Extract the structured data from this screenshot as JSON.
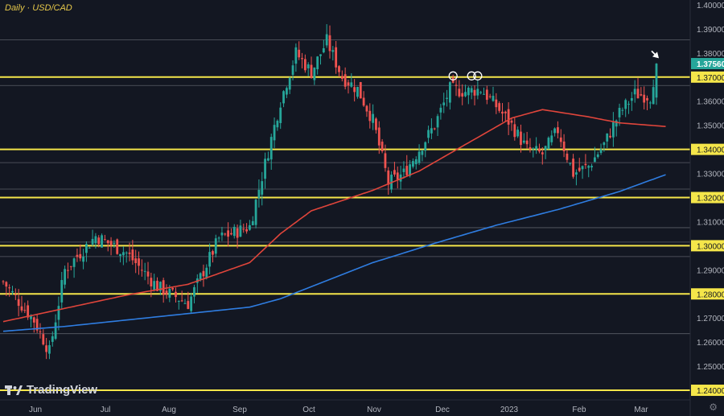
{
  "header": {
    "title": "Daily · USD/CAD"
  },
  "branding": {
    "logo_text": "TradingView"
  },
  "footer": {
    "settings_icon": "gear-icon"
  },
  "colors": {
    "background": "#131722",
    "bull": "#26a69a",
    "bear": "#ef5350",
    "support_resistance": "#f5e64a",
    "ma_fast": "#e0453b",
    "ma_slow": "#2f7de1",
    "axis_text": "#b2b5be",
    "price_label_bg": "#26a69a"
  },
  "chart_data": {
    "type": "candlestick",
    "title": "Daily · USD/CAD",
    "y_axis": {
      "min": 1.236,
      "max": 1.402,
      "ticks": [
        "1.40000",
        "1.39000",
        "1.38000",
        "1.37000",
        "1.36000",
        "1.35000",
        "1.34000",
        "1.33000",
        "1.32000",
        "1.31000",
        "1.30000",
        "1.29000",
        "1.28000",
        "1.27000",
        "1.26000",
        "1.25000",
        "1.24000"
      ]
    },
    "x_axis": {
      "ticks": [
        "Jun",
        "Jul",
        "Aug",
        "Sep",
        "Oct",
        "Nov",
        "Dec",
        "2023",
        "Feb",
        "Mar"
      ]
    },
    "current_price": "1.37560",
    "horizontal_levels": [
      1.37,
      1.34,
      1.32,
      1.3,
      1.28,
      1.24
    ],
    "faint_levels": [
      1.3855,
      1.3665,
      1.3345,
      1.3235,
      1.3075,
      1.3015,
      1.2955,
      1.2635
    ],
    "markers": [
      {
        "type": "circle",
        "date_index": 146,
        "price": 1.3705
      },
      {
        "type": "circle",
        "date_index": 152,
        "price": 1.3705
      },
      {
        "type": "circle",
        "date_index": 154,
        "price": 1.3705
      },
      {
        "type": "arrow",
        "date_index": 212,
        "price": 1.3785
      }
    ],
    "ma_slow": [
      [
        0,
        1.2645
      ],
      [
        20,
        1.2665
      ],
      [
        50,
        1.2705
      ],
      [
        80,
        1.2745
      ],
      [
        90,
        1.278
      ],
      [
        100,
        1.283
      ],
      [
        120,
        1.293
      ],
      [
        140,
        1.301
      ],
      [
        160,
        1.3085
      ],
      [
        180,
        1.315
      ],
      [
        200,
        1.3225
      ],
      [
        215,
        1.3295
      ]
    ],
    "ma_fast": [
      [
        0,
        1.2685
      ],
      [
        20,
        1.274
      ],
      [
        40,
        1.2795
      ],
      [
        60,
        1.284
      ],
      [
        80,
        1.293
      ],
      [
        90,
        1.305
      ],
      [
        100,
        1.3145
      ],
      [
        120,
        1.323
      ],
      [
        135,
        1.331
      ],
      [
        150,
        1.342
      ],
      [
        165,
        1.353
      ],
      [
        175,
        1.3565
      ],
      [
        190,
        1.3535
      ],
      [
        200,
        1.351
      ],
      [
        215,
        1.3495
      ]
    ],
    "close_path": [
      [
        0,
        1.285
      ],
      [
        10,
        1.269
      ],
      [
        15,
        1.256
      ],
      [
        20,
        1.29
      ],
      [
        30,
        1.304
      ],
      [
        40,
        1.297
      ],
      [
        50,
        1.283
      ],
      [
        60,
        1.276
      ],
      [
        70,
        1.303
      ],
      [
        80,
        1.308
      ],
      [
        90,
        1.36
      ],
      [
        95,
        1.38
      ],
      [
        100,
        1.372
      ],
      [
        105,
        1.385
      ],
      [
        110,
        1.37
      ],
      [
        115,
        1.365
      ],
      [
        120,
        1.352
      ],
      [
        125,
        1.326
      ],
      [
        130,
        1.33
      ],
      [
        135,
        1.34
      ],
      [
        140,
        1.35
      ],
      [
        145,
        1.365
      ],
      [
        150,
        1.364
      ],
      [
        155,
        1.365
      ],
      [
        160,
        1.358
      ],
      [
        165,
        1.35
      ],
      [
        170,
        1.34
      ],
      [
        175,
        1.338
      ],
      [
        180,
        1.348
      ],
      [
        185,
        1.33
      ],
      [
        190,
        1.333
      ],
      [
        195,
        1.342
      ],
      [
        200,
        1.355
      ],
      [
        205,
        1.363
      ],
      [
        210,
        1.362
      ],
      [
        212,
        1.3756
      ]
    ]
  }
}
